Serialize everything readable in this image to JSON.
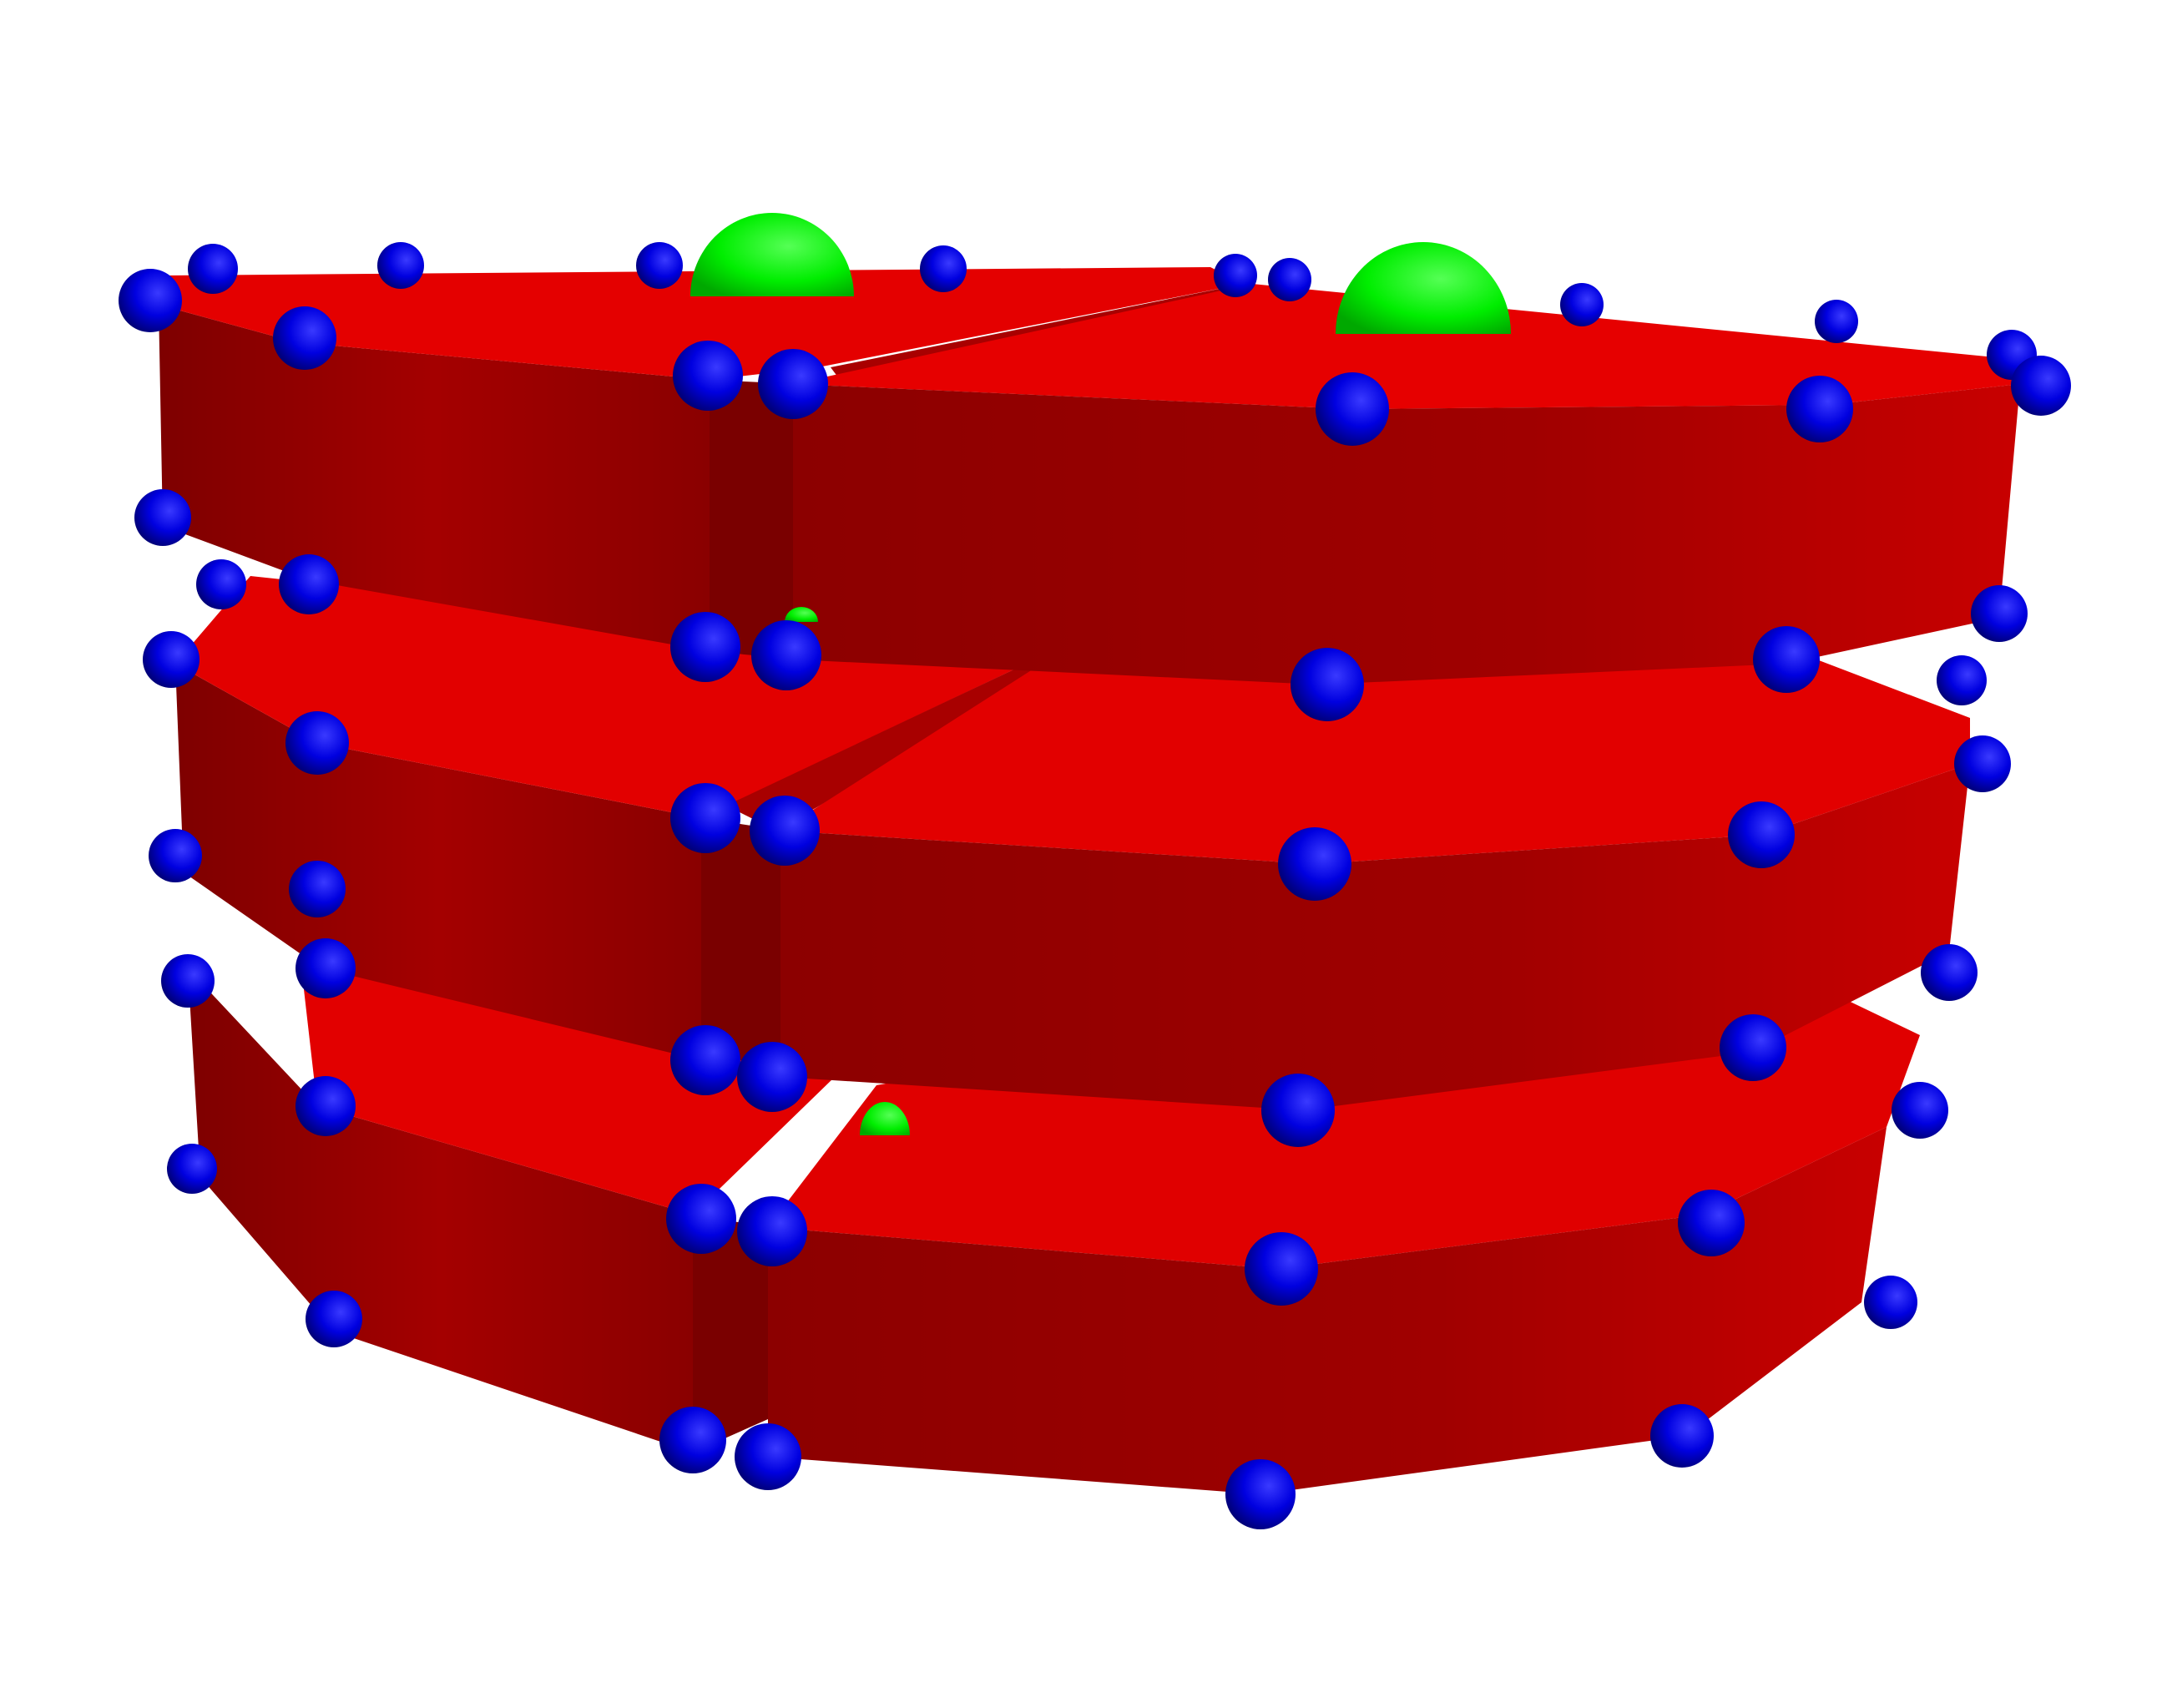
{
  "scene": {
    "background": "#ffffff",
    "colors": {
      "slab_top": "#e60000",
      "slab_side_dark": "#8f0000",
      "slab_side_light": "#c70000",
      "vertex": "#0000ee",
      "dome": "#00ee00"
    },
    "objects": {
      "slab_count": 6,
      "vertex_marker": "blue-sphere",
      "dome_marker": "green-hemisphere"
    }
  }
}
